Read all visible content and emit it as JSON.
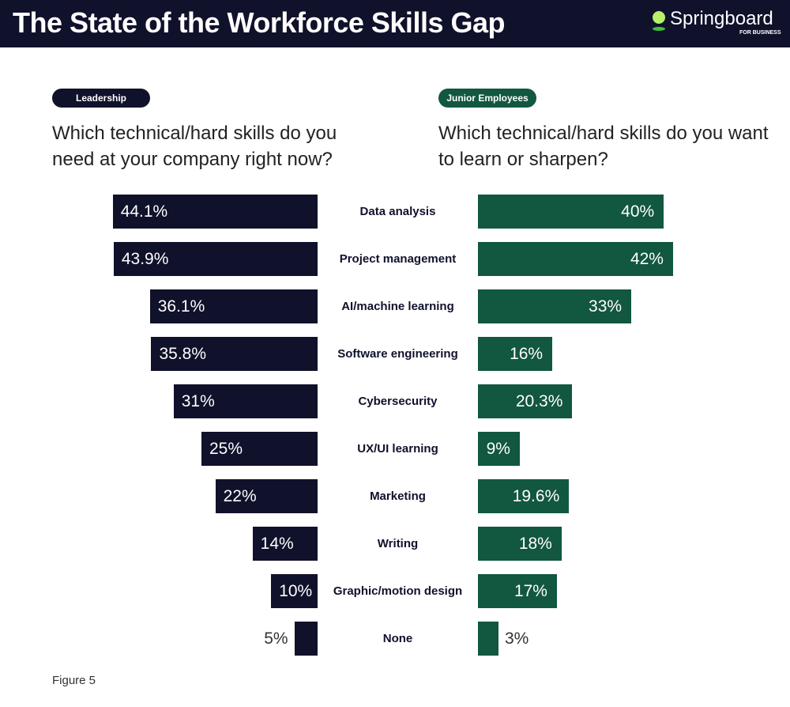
{
  "header": {
    "title": "The State of the Workforce Skills Gap",
    "logo_text": "Springboard",
    "logo_sub": "FOR BUSINESS"
  },
  "colors": {
    "leadership": "#10112b",
    "junior": "#12573f",
    "logo_accent": "#b8f06a"
  },
  "figure_label": "Figure 5",
  "chart_data": {
    "type": "bar",
    "orientation": "horizontal-diverging",
    "categories": [
      "Data analysis",
      "Project management",
      "AI/machine learning",
      "Software engineering",
      "Cybersecurity",
      "UX/UI learning",
      "Marketing",
      "Writing",
      "Graphic/motion design",
      "None"
    ],
    "series": [
      {
        "name": "Leadership",
        "question": "Which technical/hard skills do you need at your company right now?",
        "values": [
          44.1,
          43.9,
          36.1,
          35.8,
          31,
          25,
          22,
          14,
          10,
          5
        ],
        "labels": [
          "44.1%",
          "43.9%",
          "36.1%",
          "35.8%",
          "31%",
          "25%",
          "22%",
          "14%",
          "10%",
          "5%"
        ]
      },
      {
        "name": "Junior Employees",
        "question": "Which technical/hard skills do you want to learn or sharpen?",
        "values": [
          40,
          42,
          33,
          16,
          20.3,
          9,
          19.6,
          18,
          17,
          3
        ],
        "labels": [
          "40%",
          "42%",
          "33%",
          "16%",
          "20.3%",
          "9%",
          "19.6%",
          "18%",
          "17%",
          "3%"
        ]
      }
    ]
  }
}
